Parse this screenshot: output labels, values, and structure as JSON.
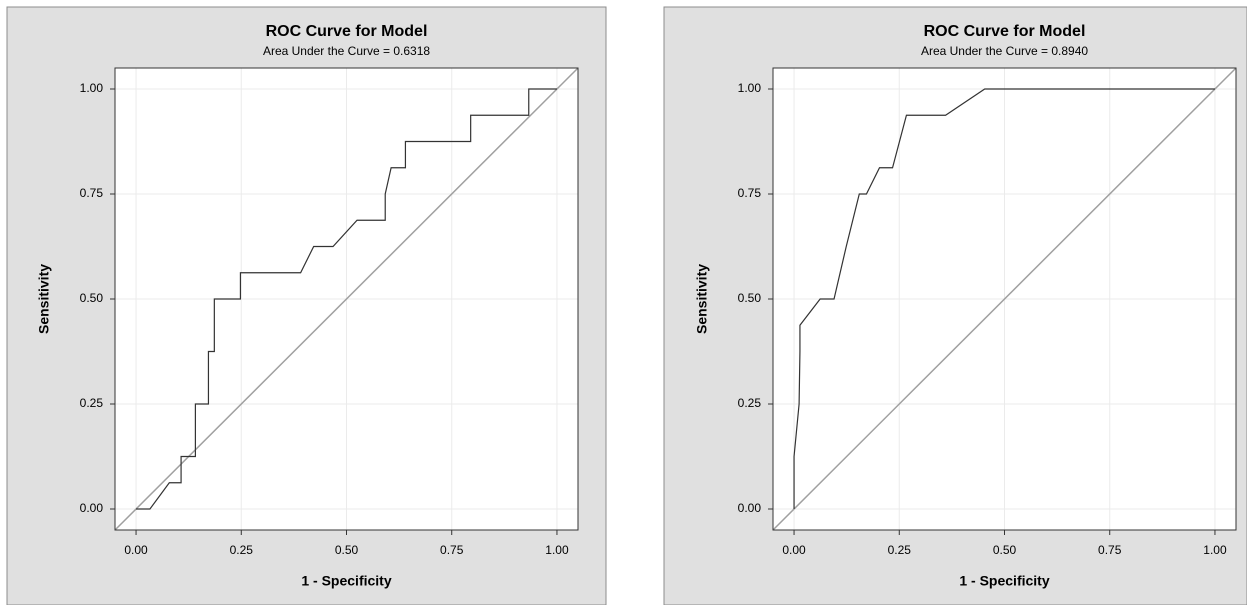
{
  "chart_data": [
    {
      "type": "line",
      "title": "ROC Curve for Model",
      "subtitle": "Area Under the Curve = 0.6318",
      "x_label": "1 - Specificity",
      "y_label": "Sensitivity",
      "xlim": [
        -0.05,
        1.05
      ],
      "ylim": [
        -0.05,
        1.05
      ],
      "xticks": [
        {
          "value": 0,
          "label": "0.00"
        },
        {
          "value": 0.25,
          "label": "0.25"
        },
        {
          "value": 0.5,
          "label": "0.50"
        },
        {
          "value": 0.75,
          "label": "0.75"
        },
        {
          "value": 1,
          "label": "1.00"
        }
      ],
      "yticks": [
        {
          "value": 0,
          "label": "0.00"
        },
        {
          "value": 0.25,
          "label": "0.25"
        },
        {
          "value": 0.5,
          "label": "0.50"
        },
        {
          "value": 0.75,
          "label": "0.75"
        },
        {
          "value": 1,
          "label": "1.00"
        }
      ],
      "grid": true,
      "reference_line": true,
      "reference_color": "#a0a0a0",
      "series": [
        {
          "color": "#333333",
          "x": [
            0,
            0.033,
            0.079,
            0.107,
            0.107,
            0.141,
            0.141,
            0.172,
            0.172,
            0.186,
            0.186,
            0.248,
            0.248,
            0.391,
            0.422,
            0.468,
            0.525,
            0.592,
            0.592,
            0.606,
            0.64,
            0.64,
            0.795,
            0.795,
            0.933,
            0.933,
            1
          ],
          "values": [
            0,
            0,
            0.0625,
            0.0625,
            0.125,
            0.125,
            0.25,
            0.25,
            0.375,
            0.375,
            0.5,
            0.5,
            0.5625,
            0.5625,
            0.625,
            0.625,
            0.6875,
            0.6875,
            0.75,
            0.8125,
            0.8125,
            0.875,
            0.875,
            0.9375,
            0.9375,
            1,
            1
          ]
        }
      ]
    },
    {
      "type": "line",
      "title": "ROC Curve for Model",
      "subtitle": "Area Under the Curve = 0.8940",
      "x_label": "1 - Specificity",
      "y_label": "Sensitivity",
      "xlim": [
        -0.05,
        1.05
      ],
      "ylim": [
        -0.05,
        1.05
      ],
      "xticks": [
        {
          "value": 0,
          "label": "0.00"
        },
        {
          "value": 0.25,
          "label": "0.25"
        },
        {
          "value": 0.5,
          "label": "0.50"
        },
        {
          "value": 0.75,
          "label": "0.75"
        },
        {
          "value": 1,
          "label": "1.00"
        }
      ],
      "yticks": [
        {
          "value": 0,
          "label": "0.00"
        },
        {
          "value": 0.25,
          "label": "0.25"
        },
        {
          "value": 0.5,
          "label": "0.50"
        },
        {
          "value": 0.75,
          "label": "0.75"
        },
        {
          "value": 1,
          "label": "1.00"
        }
      ],
      "grid": true,
      "reference_line": true,
      "reference_color": "#a0a0a0",
      "series": [
        {
          "color": "#333333",
          "x": [
            0,
            0,
            0.012,
            0.014,
            0.014,
            0.062,
            0.095,
            0.124,
            0.155,
            0.172,
            0.203,
            0.234,
            0.267,
            0.36,
            0.453,
            1
          ],
          "values": [
            0,
            0.125,
            0.25,
            0.375,
            0.4375,
            0.5,
            0.5,
            0.625,
            0.75,
            0.75,
            0.8125,
            0.8125,
            0.9375,
            0.9375,
            1,
            1
          ]
        }
      ]
    }
  ]
}
